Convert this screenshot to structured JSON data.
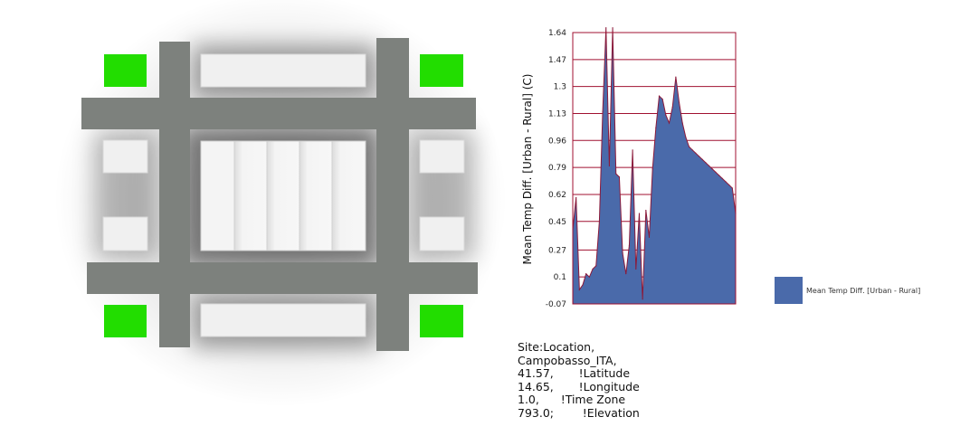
{
  "colors": {
    "road": "#7d817d",
    "building": "#f0f0f0",
    "green_plot": "#22dd00",
    "area_fill": "#4a6aaa",
    "area_stroke": "#8b1a3a",
    "grid": "#a01030"
  },
  "chart_data": {
    "type": "area",
    "ylabel": "Mean Temp Diff. [Urban - Rural] (C)",
    "y_ticks": [
      "-0.07",
      "0.1",
      "0.27",
      "0.45",
      "0.62",
      "0.79",
      "0.96",
      "1.13",
      "1.3",
      "1.47",
      "1.64"
    ],
    "ylim": [
      -0.07,
      1.64
    ],
    "x_count": 50,
    "grid": true,
    "legend_position": "right",
    "series": [
      {
        "name": "Mean Temp Diff. [Urban - Rural]",
        "values": [
          0.4,
          0.6,
          0.02,
          0.05,
          0.12,
          0.1,
          0.15,
          0.17,
          0.45,
          1.14,
          1.67,
          0.8,
          1.67,
          0.75,
          0.73,
          0.25,
          0.12,
          0.3,
          0.9,
          0.15,
          0.5,
          -0.04,
          0.52,
          0.35,
          0.78,
          1.04,
          1.24,
          1.22,
          1.12,
          1.07,
          1.17,
          1.36,
          1.2,
          1.07,
          0.98,
          0.92,
          0.9,
          0.88,
          0.86,
          0.84,
          0.82,
          0.8,
          0.78,
          0.76,
          0.74,
          0.72,
          0.7,
          0.68,
          0.66,
          0.5
        ]
      }
    ]
  },
  "site_info": [
    "Site:Location,",
    "Campobasso_ITA,",
    "41.57,       !Latitude",
    "14.65,       !Longitude",
    "1.0,      !Time Zone",
    "793.0;        !Elevation"
  ]
}
